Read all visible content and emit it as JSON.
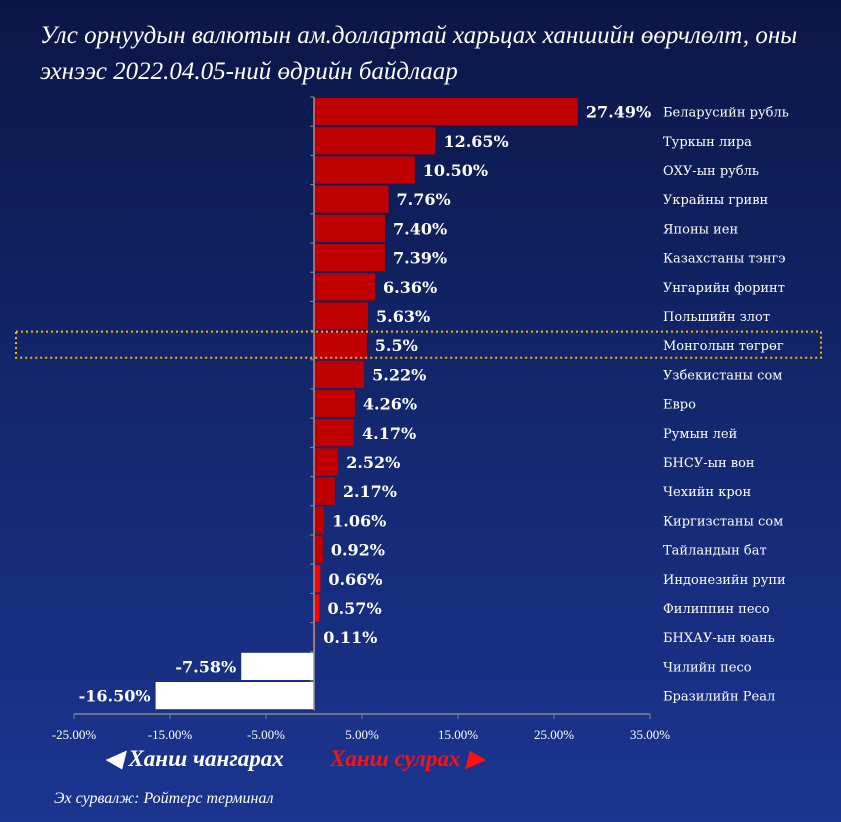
{
  "chart_data": {
    "type": "bar",
    "orientation": "horizontal",
    "title": "Улс орнуудын валютын ам.доллартай харьцах ханшийн өөрчлөлт, оны эхнээс 2022.04.05-ний өдрийн байдлаар",
    "categories": [
      "Беларусийн рубль",
      "Туркын лира",
      "ОХУ-ын рубль",
      "Украйны гривн",
      "Японы иен",
      "Казахстаны тэнгэ",
      "Унгарийн форинт",
      "Польшийн злот",
      "Монголын төгрөг",
      "Узбекистаны сом",
      "Евро",
      "Румын лей",
      "БНСУ-ын вон",
      "Чехийн крон",
      "Киргизстаны сом",
      "Тайландын бат",
      "Индонезийн рупи",
      "Филиппин песо",
      "БНХАУ-ын юань",
      "Чилийн песо",
      "Бразилийн Реал"
    ],
    "values": [
      27.49,
      12.65,
      10.5,
      7.76,
      7.4,
      7.39,
      6.36,
      5.63,
      5.5,
      5.22,
      4.26,
      4.17,
      2.52,
      2.17,
      1.06,
      0.92,
      0.66,
      0.57,
      0.11,
      -7.58,
      -16.5
    ],
    "labels": [
      "27.49%",
      "12.65%",
      "10.50%",
      "7.76%",
      "7.40%",
      "7.39%",
      "6.36%",
      "5.63%",
      "5.5%",
      "5.22%",
      "4.26%",
      "4.17%",
      "2.52%",
      "2.17%",
      "1.06%",
      "0.92%",
      "0.66%",
      "0.57%",
      "0.11%",
      "-7.58%",
      "-16.50%"
    ],
    "highlight": "Монголын төгрөг",
    "xlim": [
      -25,
      35
    ],
    "xticks": [
      -25,
      -15,
      -5,
      5,
      15,
      25,
      35
    ],
    "xtick_labels": [
      "-25.00%",
      "-15.00%",
      "-5.00%",
      "5.00%",
      "15.00%",
      "25.00%",
      "35.00%"
    ],
    "colors": {
      "positive": "#c00000",
      "small_positive": "#ff0000",
      "negative": "#ffffff",
      "highlight": "#f5b800"
    }
  },
  "legend": {
    "decrease": "Ханш чангарах",
    "increase": "Ханш сулрах",
    "decrease_color": "#ffffff",
    "increase_color": "#ff1010"
  },
  "source": "Эх сурвалж: Ройтерс терминал"
}
